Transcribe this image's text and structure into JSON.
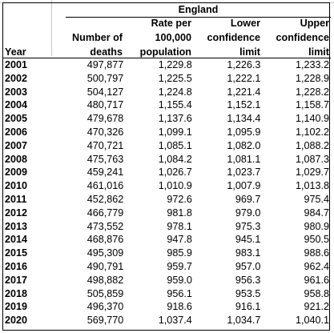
{
  "region_title": "England",
  "headers": {
    "year": "Year",
    "deaths": [
      "Number of",
      "deaths"
    ],
    "rate": [
      "Rate per",
      "100,000",
      "population"
    ],
    "lower": [
      "Lower",
      "confidence",
      "limit"
    ],
    "upper": [
      "Upper",
      "confidence",
      "limit"
    ]
  },
  "rows": [
    {
      "year": "2001",
      "deaths": "497,877",
      "rate": "1,229.8",
      "lower": "1,226.3",
      "upper": "1,233.2"
    },
    {
      "year": "2002",
      "deaths": "500,797",
      "rate": "1,225.5",
      "lower": "1,222.1",
      "upper": "1,228.9"
    },
    {
      "year": "2003",
      "deaths": "504,127",
      "rate": "1,224.8",
      "lower": "1,221.4",
      "upper": "1,228.2"
    },
    {
      "year": "2004",
      "deaths": "480,717",
      "rate": "1,155.4",
      "lower": "1,152.1",
      "upper": "1,158.7"
    },
    {
      "year": "2005",
      "deaths": "479,678",
      "rate": "1,137.6",
      "lower": "1,134.4",
      "upper": "1,140.9"
    },
    {
      "year": "2006",
      "deaths": "470,326",
      "rate": "1,099.1",
      "lower": "1,095.9",
      "upper": "1,102.2"
    },
    {
      "year": "2007",
      "deaths": "470,721",
      "rate": "1,085.1",
      "lower": "1,082.0",
      "upper": "1,088.2"
    },
    {
      "year": "2008",
      "deaths": "475,763",
      "rate": "1,084.2",
      "lower": "1,081.1",
      "upper": "1,087.3"
    },
    {
      "year": "2009",
      "deaths": "459,241",
      "rate": "1,026.7",
      "lower": "1,023.7",
      "upper": "1,029.7"
    },
    {
      "year": "2010",
      "deaths": "461,016",
      "rate": "1,010.9",
      "lower": "1,007.9",
      "upper": "1,013.8"
    },
    {
      "year": "2011",
      "deaths": "452,862",
      "rate": "972.6",
      "lower": "969.7",
      "upper": "975.4"
    },
    {
      "year": "2012",
      "deaths": "466,779",
      "rate": "981.8",
      "lower": "979.0",
      "upper": "984.7"
    },
    {
      "year": "2013",
      "deaths": "473,552",
      "rate": "978.1",
      "lower": "975.3",
      "upper": "980.9"
    },
    {
      "year": "2014",
      "deaths": "468,876",
      "rate": "947.8",
      "lower": "945.1",
      "upper": "950.5"
    },
    {
      "year": "2015",
      "deaths": "495,309",
      "rate": "985.9",
      "lower": "983.1",
      "upper": "988.6"
    },
    {
      "year": "2016",
      "deaths": "490,791",
      "rate": "959.7",
      "lower": "957.0",
      "upper": "962.4"
    },
    {
      "year": "2017",
      "deaths": "498,882",
      "rate": "959.0",
      "lower": "956.3",
      "upper": "961.6"
    },
    {
      "year": "2018",
      "deaths": "505,859",
      "rate": "956.1",
      "lower": "953.5",
      "upper": "958.8"
    },
    {
      "year": "2019",
      "deaths": "496,370",
      "rate": "918.6",
      "lower": "916.1",
      "upper": "921.2"
    },
    {
      "year": "2020",
      "deaths": "569,770",
      "rate": "1,037.4",
      "lower": "1,034.7",
      "upper": "1,040.1"
    }
  ]
}
